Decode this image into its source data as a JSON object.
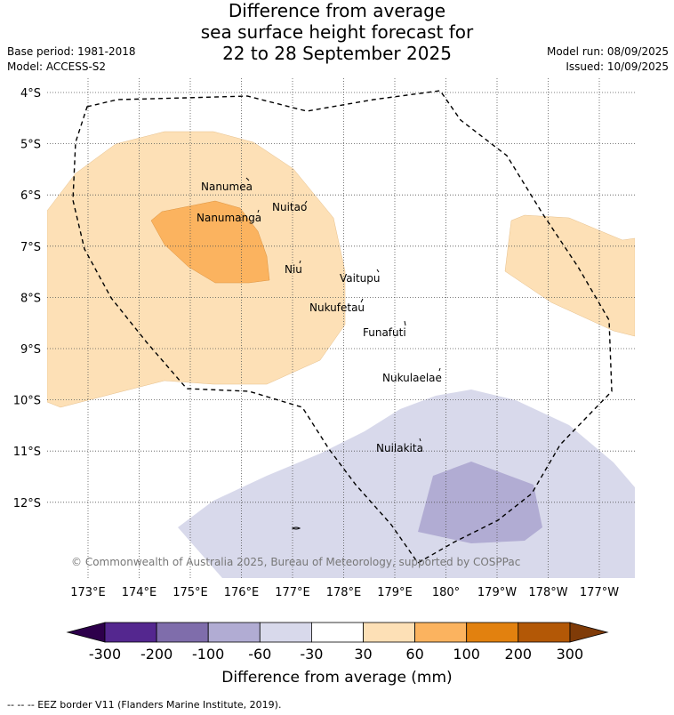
{
  "title": {
    "line1": "Difference from average",
    "line2": "sea surface height forecast for",
    "line3": "22 to 28 September 2025"
  },
  "meta_left": {
    "base_period": "Base period: 1981-2018",
    "model": "Model: ACCESS-S2"
  },
  "meta_right": {
    "model_run": "Model run: 08/09/2025",
    "issued": "Issued: 10/09/2025"
  },
  "map": {
    "lat_labels": [
      "4°S",
      "5°S",
      "6°S",
      "7°S",
      "8°S",
      "9°S",
      "10°S",
      "11°S",
      "12°S"
    ],
    "lon_labels": [
      "173°E",
      "174°E",
      "175°E",
      "176°E",
      "177°E",
      "178°E",
      "179°E",
      "180°",
      "179°W",
      "178°W",
      "177°W"
    ],
    "islands": [
      {
        "name": "Nanumea"
      },
      {
        "name": "Nuitao"
      },
      {
        "name": "Nanumanga"
      },
      {
        "name": "Niu"
      },
      {
        "name": "Vaitupu"
      },
      {
        "name": "Nukufetau"
      },
      {
        "name": "Funafuti"
      },
      {
        "name": "Nukulaelae"
      },
      {
        "name": "Nuilakita"
      }
    ],
    "copyright": "© Commonwealth of Australia 2025, Bureau of Meteorology, supported by COSPPac",
    "colors": {
      "pos_30_60": "#fde0b6",
      "pos_60_100": "#fbb35f",
      "neg_30_60": "#d8d9eb",
      "neg_60_100": "#b1acd3"
    }
  },
  "colorbar": {
    "tick_labels": [
      "-300",
      "-200",
      "-100",
      "-60",
      "-30",
      "30",
      "60",
      "100",
      "200",
      "300"
    ],
    "colors": [
      "#54278f",
      "#7f6dab",
      "#b1acd3",
      "#d8d9eb",
      "#ffffff",
      "#fde0b6",
      "#fbb35f",
      "#e2810f",
      "#b35806"
    ],
    "extend_low_color": "#2d004b",
    "extend_high_color": "#7f3b08",
    "label": "Difference from average (mm)"
  },
  "legend_note": "-- -- -- EEZ border V11 (Flanders Marine Institute, 2019)."
}
